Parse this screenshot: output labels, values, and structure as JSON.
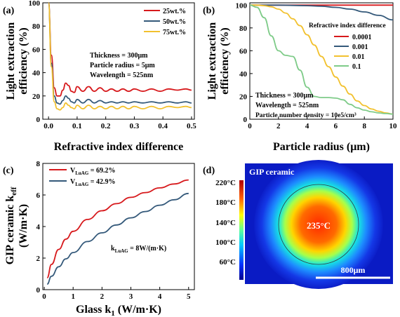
{
  "colors": {
    "red": "#d7191c",
    "blue": "#34597a",
    "yellow": "#f2c12e",
    "green": "#7ecb88"
  },
  "chart_data": [
    {
      "panel_label": "(a)",
      "type": "line",
      "xlabel": "Refractive index difference",
      "ylabel_line1": "Light extraction",
      "ylabel_line2": "efficiency (%)",
      "xlim": [
        -0.02,
        0.51
      ],
      "ylim": [
        0,
        100
      ],
      "x_ticks": [
        0.0,
        0.1,
        0.2,
        0.3,
        0.4,
        0.5
      ],
      "x_tick_labels": [
        "0.0",
        "0.1",
        "0.2",
        "0.3",
        "0.4",
        "0.5"
      ],
      "y_ticks": [
        0,
        20,
        40,
        60,
        80,
        100
      ],
      "y_tick_labels": [
        "0",
        "20",
        "40",
        "60",
        "80",
        "100"
      ],
      "legend": "top-right",
      "annotations": [
        "Thickness = 300μm",
        "Particle radius = 5μm",
        "Wavelength = 525nm"
      ],
      "series": [
        {
          "name": "25wt.%",
          "color": "red",
          "x": [
            0.0,
            0.01,
            0.02,
            0.03,
            0.04,
            0.05,
            0.06,
            0.07,
            0.08,
            0.09,
            0.1,
            0.12,
            0.14,
            0.16,
            0.18,
            0.2,
            0.22,
            0.24,
            0.26,
            0.28,
            0.3,
            0.33,
            0.36,
            0.39,
            0.42,
            0.45,
            0.48,
            0.5
          ],
          "y": [
            100,
            55,
            27,
            20,
            20,
            25,
            31,
            29,
            24,
            23,
            28,
            24,
            28,
            24,
            27,
            24,
            26,
            24,
            26,
            24,
            26,
            24,
            26,
            24,
            26,
            25,
            26,
            25
          ]
        },
        {
          "name": "50wt.%",
          "color": "blue",
          "x": [
            0.0,
            0.01,
            0.02,
            0.03,
            0.04,
            0.05,
            0.06,
            0.07,
            0.08,
            0.09,
            0.1,
            0.12,
            0.14,
            0.16,
            0.18,
            0.2,
            0.22,
            0.24,
            0.26,
            0.28,
            0.3,
            0.33,
            0.36,
            0.39,
            0.42,
            0.45,
            0.48,
            0.5
          ],
          "y": [
            100,
            48,
            20,
            14,
            13,
            16,
            20,
            18,
            15,
            14,
            17,
            14,
            17,
            14,
            16,
            14,
            15,
            14,
            15,
            14,
            15,
            14,
            15,
            14,
            15,
            14,
            15,
            14
          ]
        },
        {
          "name": "75wt.%",
          "color": "yellow",
          "x": [
            0.0,
            0.01,
            0.02,
            0.03,
            0.04,
            0.05,
            0.06,
            0.07,
            0.08,
            0.09,
            0.1,
            0.12,
            0.14,
            0.16,
            0.18,
            0.2,
            0.22,
            0.24,
            0.26,
            0.28,
            0.3,
            0.33,
            0.36,
            0.39,
            0.42,
            0.45,
            0.48,
            0.5
          ],
          "y": [
            100,
            45,
            15,
            9,
            8,
            10,
            14,
            12,
            10,
            9,
            12,
            9,
            12,
            9,
            11,
            9,
            11,
            9,
            11,
            9,
            11,
            9,
            11,
            9,
            11,
            10,
            11,
            10
          ]
        }
      ]
    },
    {
      "panel_label": "(b)",
      "type": "line",
      "xlabel": "Particle radius (μm)",
      "ylabel_line1": "Light extraction",
      "ylabel_line2": "efficiency (%)",
      "xlim": [
        0,
        10
      ],
      "ylim": [
        0,
        102
      ],
      "x_ticks": [
        0,
        2,
        4,
        6,
        8,
        10
      ],
      "x_tick_labels": [
        "0",
        "2",
        "4",
        "6",
        "8",
        "10"
      ],
      "y_ticks": [
        0,
        20,
        40,
        60,
        80,
        100
      ],
      "y_tick_labels": [
        "0",
        "20",
        "40",
        "60",
        "80",
        "100"
      ],
      "legend_title": "Refractive index difference",
      "legend": "top-right",
      "annotations": [
        "Thickness = 300μm",
        "Wavelength = 525nm",
        "Particle number density = 10e5/cm³"
      ],
      "series": [
        {
          "name": "0.0001",
          "color": "red",
          "x": [
            0,
            2,
            4,
            6,
            8,
            10
          ],
          "y": [
            100,
            100,
            100,
            100,
            100,
            100
          ]
        },
        {
          "name": "0.001",
          "color": "blue",
          "x": [
            0,
            2,
            4,
            5,
            6,
            7,
            8,
            9,
            10
          ],
          "y": [
            100,
            100,
            99.5,
            99,
            98,
            96.5,
            94,
            91,
            87
          ]
        },
        {
          "name": "0.01",
          "color": "yellow",
          "x": [
            0,
            0.5,
            1,
            1.5,
            2,
            2.5,
            3,
            3.5,
            4,
            4.5,
            5,
            5.5,
            6,
            6.5,
            7,
            7.5,
            8,
            8.5,
            9,
            9.5,
            10
          ],
          "y": [
            100,
            100,
            99.5,
            98.5,
            96.5,
            93,
            88,
            82,
            74,
            65,
            55,
            46,
            37,
            29,
            22,
            16,
            12,
            9,
            7,
            5.5,
            4.5
          ]
        },
        {
          "name": "0.1",
          "color": "green",
          "x": [
            0,
            0.5,
            1,
            1.5,
            2,
            2.5,
            3,
            3.5,
            4,
            4.5,
            5,
            5.5,
            6,
            6.5,
            7,
            7.5,
            8,
            8.5,
            9,
            9.5,
            10
          ],
          "y": [
            100,
            98,
            89,
            73,
            60,
            56,
            55,
            43,
            28,
            20,
            19,
            19,
            18.5,
            17,
            13,
            10,
            8,
            6.5,
            5.5,
            5,
            4.5
          ]
        }
      ]
    },
    {
      "panel_label": "(c)",
      "type": "line",
      "xlabel": "Glass k",
      "xlabel_sub": "1",
      "xlabel_unit": " (W/m·K)",
      "ylabel_line1": "GIP ceramic k",
      "ylabel_line1_sub": "eff",
      "ylabel_line2": "(W/m·K)",
      "xlim": [
        -0.05,
        5.2
      ],
      "ylim": [
        0,
        8
      ],
      "x_ticks": [
        0,
        1,
        2,
        3,
        4,
        5
      ],
      "x_tick_labels": [
        "0",
        "1",
        "2",
        "3",
        "4",
        "5"
      ],
      "y_ticks": [
        0,
        2,
        4,
        6,
        8
      ],
      "y_tick_labels": [
        "0",
        "2",
        "4",
        "6",
        "8"
      ],
      "legend": "top-left",
      "annotation": {
        "text": "k",
        "sub": "LuAG",
        "rest": " = 8W/(m·K)"
      },
      "series": [
        {
          "name_main": "V",
          "name_sub": "LuAG",
          "name_rest": " = 69.2%",
          "color": "red",
          "x": [
            0.1,
            0.25,
            0.5,
            0.75,
            1,
            1.5,
            2,
            2.5,
            3,
            3.5,
            4,
            4.5,
            5
          ],
          "y": [
            0.75,
            1.6,
            2.55,
            3.2,
            3.7,
            4.45,
            5.0,
            5.45,
            5.85,
            6.15,
            6.45,
            6.7,
            6.95
          ]
        },
        {
          "name_main": "V",
          "name_sub": "LuAG",
          "name_rest": " = 42.9%",
          "color": "blue",
          "x": [
            0.1,
            0.25,
            0.5,
            0.75,
            1,
            1.5,
            2,
            2.5,
            3,
            3.5,
            4,
            4.5,
            5
          ],
          "y": [
            0.35,
            0.85,
            1.45,
            1.95,
            2.35,
            3.05,
            3.6,
            4.1,
            4.55,
            4.95,
            5.35,
            5.7,
            6.1
          ]
        }
      ]
    },
    {
      "panel_label": "(d)",
      "type": "heatmap",
      "title": "GIP ceramic",
      "center_label": "235°C",
      "colorbar_ticks": [
        "220°C",
        "180°C",
        "140°C",
        "100°C",
        "60°C"
      ],
      "colorbar_values": [
        220,
        180,
        140,
        100,
        60
      ],
      "colorbar_range": [
        40,
        240
      ],
      "scale_bar": "800μm"
    }
  ]
}
